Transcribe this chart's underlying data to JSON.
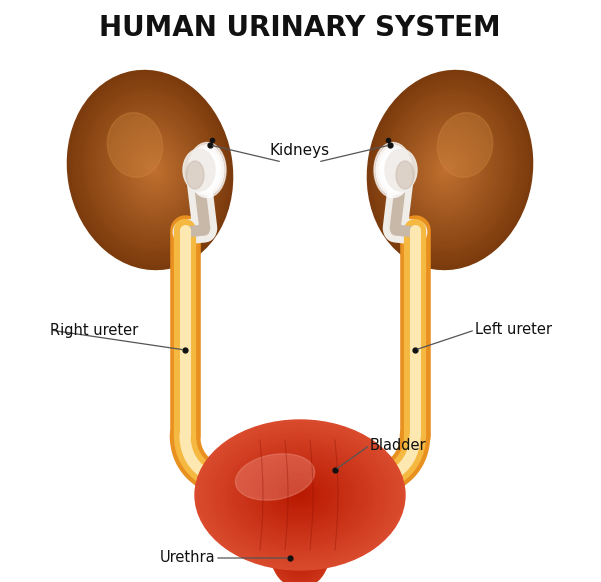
{
  "title": "HUMAN URINARY SYSTEM",
  "title_fontsize": 20,
  "background_color": "#ffffff",
  "label_fontsize": 10.5,
  "labels": {
    "kidneys": "Kidneys",
    "right_ureter": "Right ureter",
    "left_ureter": "Left ureter",
    "bladder": "Bladder",
    "urethra": "Urethra"
  },
  "kidney_color_dark": "#6b2e04",
  "kidney_color_mid": "#9b4a10",
  "kidney_color_light": "#c07030",
  "kidney_color_highlight": "#d08840",
  "renal_pelvis_white": "#f0ece8",
  "renal_pelvis_shadow": "#c8b8a8",
  "ureter_outer": "#e89020",
  "ureter_mid": "#f5b840",
  "ureter_inner": "#fce8b0",
  "bladder_dark": "#b81800",
  "bladder_mid": "#d03010",
  "bladder_light": "#e86040",
  "bladder_highlight": "#f09080",
  "urethra_dark": "#b81800",
  "urethra_mid": "#cc2800",
  "urethra_light": "#e05030"
}
